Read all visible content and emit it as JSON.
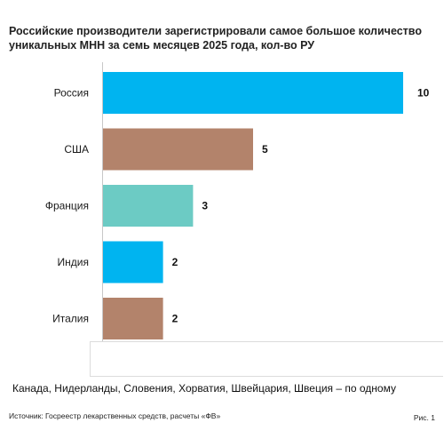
{
  "title": "Российские производители зарегистрировали самое большое количество уникальных МНН за семь месяцев 2025 года, кол-во РУ",
  "chart_data": {
    "type": "bar",
    "orientation": "horizontal",
    "categories": [
      "Россия",
      "США",
      "Франция",
      "Индия",
      "Италия"
    ],
    "values": [
      10,
      5,
      3,
      2,
      2
    ],
    "colors": [
      "#00b4f0",
      "#b3836b",
      "#6ccbc4",
      "#00b4f0",
      "#b3836b"
    ],
    "xlim": [
      0,
      10
    ],
    "grid": false,
    "legend": "none"
  },
  "note": "Канада, Нидерланды, Словения, Хорватия, Швейцария, Швеция – по одному",
  "source": "Источник: Госреестр лекарственных средств, расчеты «ФВ»",
  "figure_label": "Рис. 1"
}
